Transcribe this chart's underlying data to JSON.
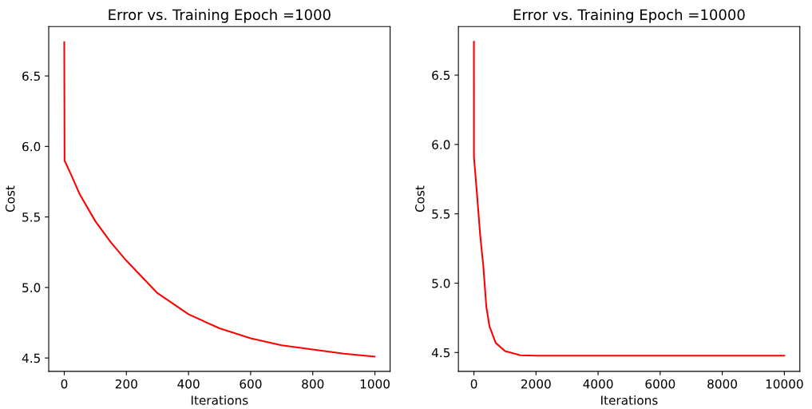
{
  "chart_data": [
    {
      "type": "line",
      "title": "Error vs. Training Epoch =1000",
      "xlabel": "Iterations",
      "ylabel": "Cost",
      "x": [
        0,
        1,
        20,
        50,
        100,
        150,
        200,
        300,
        400,
        500,
        600,
        700,
        800,
        900,
        999
      ],
      "series": [
        {
          "color": "#ff0000",
          "values": [
            6.74,
            5.9,
            5.81,
            5.66,
            5.47,
            5.32,
            5.19,
            4.96,
            4.81,
            4.71,
            4.64,
            4.59,
            4.56,
            4.53,
            4.51
          ]
        }
      ],
      "xlim": [
        -50,
        1049
      ],
      "ylim": [
        4.405,
        6.85
      ],
      "xticks": [
        0,
        200,
        400,
        600,
        800,
        1000
      ],
      "yticks": [
        {
          "value": 4.5,
          "label": "4.5"
        },
        {
          "value": 5,
          "label": "5.0"
        },
        {
          "value": 5.5,
          "label": "5.5"
        },
        {
          "value": 6,
          "label": "6.0"
        },
        {
          "value": 6.5,
          "label": "6.5"
        }
      ],
      "grid": false,
      "legend": false,
      "marker": "none",
      "line_style": "solid"
    },
    {
      "type": "line",
      "title": "Error vs. Training Epoch =10000",
      "xlabel": "Iterations",
      "ylabel": "Cost",
      "x": [
        0,
        1,
        100,
        200,
        300,
        400,
        500,
        700,
        1000,
        1500,
        2000,
        4000,
        6000,
        8000,
        9999
      ],
      "series": [
        {
          "color": "#ff0000",
          "values": [
            6.74,
            5.91,
            5.64,
            5.35,
            5.13,
            4.83,
            4.69,
            4.57,
            4.51,
            4.48,
            4.477,
            4.477,
            4.477,
            4.477,
            4.477
          ]
        }
      ],
      "xlim": [
        -500,
        10499
      ],
      "ylim": [
        4.364,
        6.85
      ],
      "xticks": [
        0,
        2000,
        4000,
        6000,
        8000,
        10000
      ],
      "yticks": [
        {
          "value": 4.5,
          "label": "4.5"
        },
        {
          "value": 5,
          "label": "5.0"
        },
        {
          "value": 5.5,
          "label": "5.5"
        },
        {
          "value": 6,
          "label": "6.0"
        },
        {
          "value": 6.5,
          "label": "6.5"
        }
      ],
      "grid": false,
      "legend": false,
      "marker": "none",
      "line_style": "solid"
    }
  ]
}
